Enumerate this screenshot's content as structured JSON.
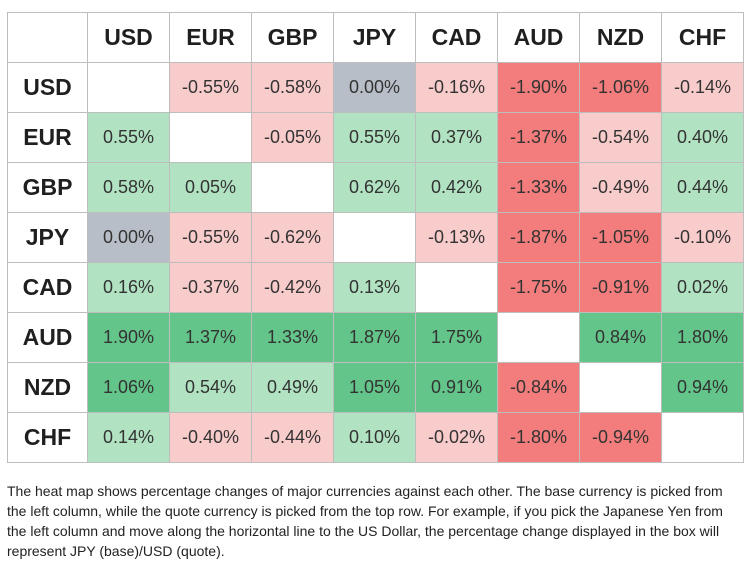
{
  "chart_data": {
    "type": "heatmap",
    "title": "",
    "currencies": [
      "USD",
      "EUR",
      "GBP",
      "JPY",
      "CAD",
      "AUD",
      "NZD",
      "CHF"
    ],
    "cells": [
      [
        null,
        "-0.55%",
        "-0.58%",
        "0.00%",
        "-0.16%",
        "-1.90%",
        "-1.06%",
        "-0.14%"
      ],
      [
        "0.55%",
        null,
        "-0.05%",
        "0.55%",
        "0.37%",
        "-1.37%",
        "-0.54%",
        "0.40%"
      ],
      [
        "0.58%",
        "0.05%",
        null,
        "0.62%",
        "0.42%",
        "-1.33%",
        "-0.49%",
        "0.44%"
      ],
      [
        "0.00%",
        "-0.55%",
        "-0.62%",
        null,
        "-0.13%",
        "-1.87%",
        "-1.05%",
        "-0.10%"
      ],
      [
        "0.16%",
        "-0.37%",
        "-0.42%",
        "0.13%",
        null,
        "-1.75%",
        "-0.91%",
        "0.02%"
      ],
      [
        "1.90%",
        "1.37%",
        "1.33%",
        "1.87%",
        "1.75%",
        null,
        "0.84%",
        "1.80%"
      ],
      [
        "1.06%",
        "0.54%",
        "0.49%",
        "1.05%",
        "0.91%",
        "-0.84%",
        null,
        "0.94%"
      ],
      [
        "0.14%",
        "-0.40%",
        "-0.44%",
        "0.10%",
        "-0.02%",
        "-1.80%",
        "-0.94%",
        null
      ]
    ],
    "colors": {
      "strong_negative": "#f37d7c",
      "mild_negative": "#f9cccc",
      "zero": "#b8bec8",
      "mild_positive": "#b1e3c2",
      "strong_positive": "#63c589",
      "empty": "#ffffff"
    }
  },
  "footnote": "The heat map shows percentage changes of major currencies against each other. The base currency is picked from the left column, while the quote currency is picked from the top row. For example, if you pick the Japanese Yen from the left column and move along the horizontal line to the US Dollar, the percentage change displayed in the box will represent JPY (base)/USD (quote)."
}
